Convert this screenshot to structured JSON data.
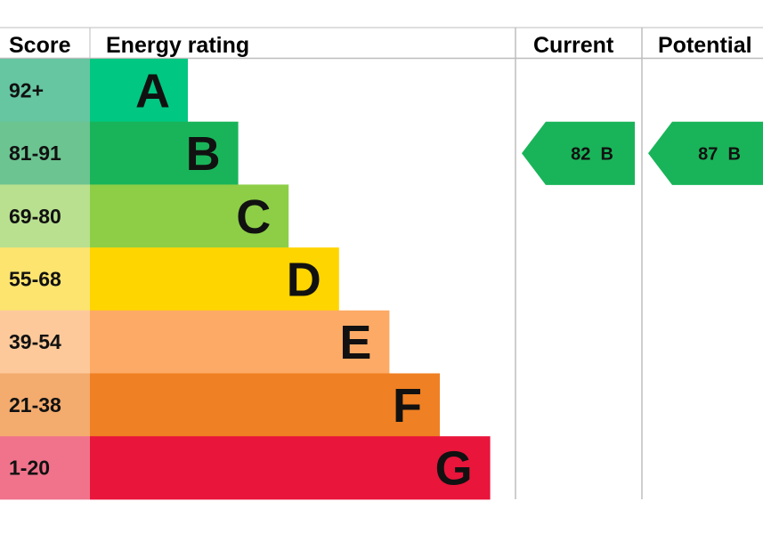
{
  "headers": {
    "score": "Score",
    "energy_rating": "Energy rating",
    "current": "Current",
    "potential": "Potential"
  },
  "chart_data": {
    "type": "bar",
    "title": "",
    "bands": [
      {
        "score": "92+",
        "letter": "A",
        "color": "#00c781",
        "score_bg": "#66c6a2"
      },
      {
        "score": "81-91",
        "letter": "B",
        "color": "#19b459",
        "score_bg": "#6cc491"
      },
      {
        "score": "69-80",
        "letter": "C",
        "color": "#8dce46",
        "score_bg": "#b9e08f"
      },
      {
        "score": "55-68",
        "letter": "D",
        "color": "#ffd500",
        "score_bg": "#fce46f"
      },
      {
        "score": "39-54",
        "letter": "E",
        "color": "#fcaa65",
        "score_bg": "#fdc99b"
      },
      {
        "score": "21-38",
        "letter": "F",
        "color": "#ef8023",
        "score_bg": "#f3ab6e"
      },
      {
        "score": "1-20",
        "letter": "G",
        "color": "#e9153b",
        "score_bg": "#f0738b"
      }
    ],
    "current": {
      "value": 82,
      "letter": "B",
      "label": "82  B",
      "color": "#19b459"
    },
    "potential": {
      "value": 87,
      "letter": "B",
      "label": "87  B",
      "color": "#19b459"
    }
  }
}
